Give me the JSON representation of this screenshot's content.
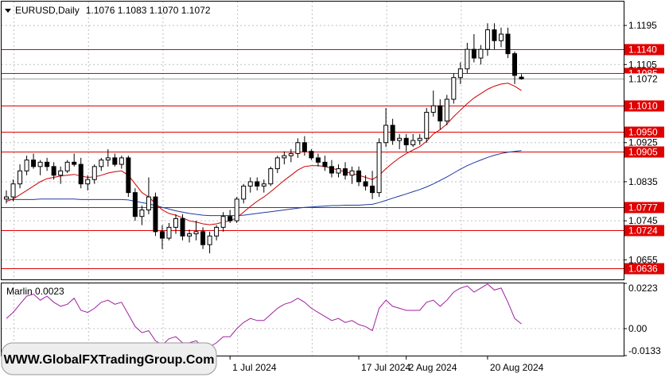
{
  "header": {
    "symbol": "EURUSD",
    "timeframe": "Daily",
    "quote": "1.1076 1.1083 1.1070 1.1072"
  },
  "watermark": "WWW.GlobalFXTradingGroup.Com",
  "colors": {
    "bg": "#ffffff",
    "grid": "#c0c0c0",
    "level": "#e00000",
    "ma_fast": "#cc0000",
    "ma_slow": "#1f3a9e",
    "osc": "#a020a0",
    "candle": "#000000",
    "current": "#000000"
  },
  "chart_data": [
    {
      "type": "candlestick",
      "title": "EURUSD,Daily",
      "ylim": [
        1.061,
        1.125
      ],
      "y_ticks": [
        "1.1195",
        "1.1105",
        "1.0925",
        "1.0835",
        "1.0745",
        "1.0655"
      ],
      "x_labels": [
        "1 Jul 2024",
        "17 Jul 2024",
        "2 Aug 2024",
        "20 Aug 2024"
      ],
      "grid": true,
      "current_price": 1.1072,
      "current_price_label": "1.1072",
      "levels": [
        {
          "value": 1.114,
          "label": "1.1140"
        },
        {
          "value": 1.1085,
          "label": "1.1085"
        },
        {
          "value": 1.101,
          "label": "1.1010"
        },
        {
          "value": 1.095,
          "label": "1.0950"
        },
        {
          "value": 1.0905,
          "label": "1.0905"
        },
        {
          "value": 1.0777,
          "label": "1.0777"
        },
        {
          "value": 1.0724,
          "label": "1.0724"
        },
        {
          "value": 1.0636,
          "label": "1.0636"
        }
      ],
      "candles": [
        [
          1.0795,
          1.0815,
          1.0785,
          1.08
        ],
        [
          1.08,
          1.084,
          1.079,
          1.083
        ],
        [
          1.083,
          1.0875,
          1.082,
          1.086
        ],
        [
          1.086,
          1.0895,
          1.085,
          1.0885
        ],
        [
          1.0885,
          1.09,
          1.0865,
          1.087
        ],
        [
          1.087,
          1.0885,
          1.085,
          1.088
        ],
        [
          1.088,
          1.089,
          1.086,
          1.087
        ],
        [
          1.087,
          1.088,
          1.084,
          1.085
        ],
        [
          1.085,
          1.087,
          1.083,
          1.086
        ],
        [
          1.086,
          1.0885,
          1.0855,
          1.088
        ],
        [
          1.088,
          1.09,
          1.087,
          1.0875
        ],
        [
          1.0875,
          1.089,
          1.082,
          1.083
        ],
        [
          1.083,
          1.085,
          1.0815,
          1.084
        ],
        [
          1.084,
          1.0875,
          1.083,
          1.087
        ],
        [
          1.087,
          1.089,
          1.086,
          1.0885
        ],
        [
          1.0885,
          1.091,
          1.087,
          1.089
        ],
        [
          1.089,
          1.09,
          1.087,
          1.0875
        ],
        [
          1.0875,
          1.0895,
          1.0865,
          1.089
        ],
        [
          1.089,
          1.0895,
          1.08,
          1.081
        ],
        [
          1.081,
          1.082,
          1.0745,
          1.0755
        ],
        [
          1.0755,
          1.078,
          1.0735,
          1.077
        ],
        [
          1.077,
          1.0845,
          1.076,
          1.08
        ],
        [
          1.08,
          1.081,
          1.071,
          1.072
        ],
        [
          1.072,
          1.0735,
          1.068,
          1.0705
        ],
        [
          1.0705,
          1.074,
          1.07,
          1.073
        ],
        [
          1.073,
          1.076,
          1.0715,
          1.075
        ],
        [
          1.075,
          1.076,
          1.07,
          1.071
        ],
        [
          1.071,
          1.0725,
          1.0695,
          1.0715
        ],
        [
          1.0715,
          1.0745,
          1.07,
          1.072
        ],
        [
          1.072,
          1.073,
          1.068,
          1.069
        ],
        [
          1.069,
          1.072,
          1.067,
          1.071
        ],
        [
          1.071,
          1.0735,
          1.07,
          1.073
        ],
        [
          1.073,
          1.0765,
          1.072,
          1.0755
        ],
        [
          1.0755,
          1.077,
          1.074,
          1.0745
        ],
        [
          1.0745,
          1.08,
          1.074,
          1.0795
        ],
        [
          1.0795,
          1.083,
          1.0785,
          1.0825
        ],
        [
          1.0825,
          1.0845,
          1.081,
          1.0835
        ],
        [
          1.0835,
          1.0845,
          1.0815,
          1.0825
        ],
        [
          1.0825,
          1.084,
          1.081,
          1.083
        ],
        [
          1.083,
          1.087,
          1.0825,
          1.0865
        ],
        [
          1.0865,
          1.0895,
          1.0855,
          1.089
        ],
        [
          1.089,
          1.0905,
          1.0875,
          1.0895
        ],
        [
          1.0895,
          1.091,
          1.088,
          1.09
        ],
        [
          1.09,
          1.0935,
          1.089,
          1.0925
        ],
        [
          1.0925,
          1.094,
          1.0895,
          1.0905
        ],
        [
          1.0905,
          1.091,
          1.0885,
          1.089
        ],
        [
          1.089,
          1.09,
          1.087,
          1.088
        ],
        [
          1.088,
          1.0895,
          1.086,
          1.087
        ],
        [
          1.087,
          1.0885,
          1.0845,
          1.0855
        ],
        [
          1.0855,
          1.0875,
          1.0845,
          1.0865
        ],
        [
          1.0865,
          1.088,
          1.084,
          1.085
        ],
        [
          1.085,
          1.087,
          1.083,
          1.086
        ],
        [
          1.086,
          1.087,
          1.0825,
          1.0835
        ],
        [
          1.0835,
          1.085,
          1.0815,
          1.0825
        ],
        [
          1.0825,
          1.086,
          1.0795,
          1.081
        ],
        [
          1.081,
          1.0935,
          1.08,
          1.0925
        ],
        [
          1.0925,
          1.1005,
          1.0915,
          1.0965
        ],
        [
          1.0965,
          1.098,
          1.092,
          1.093
        ],
        [
          1.093,
          1.0945,
          1.091,
          1.0935
        ],
        [
          1.0935,
          1.0945,
          1.0905,
          1.092
        ],
        [
          1.092,
          1.0945,
          1.0915,
          1.093
        ],
        [
          1.093,
          1.0945,
          1.092,
          1.0935
        ],
        [
          1.0935,
          1.1005,
          1.0925,
          1.0995
        ],
        [
          1.0995,
          1.1045,
          1.0985,
          1.101
        ],
        [
          1.101,
          1.1025,
          1.0955,
          1.0975
        ],
        [
          1.0975,
          1.1035,
          1.0965,
          1.1025
        ],
        [
          1.1025,
          1.1085,
          1.1015,
          1.1075
        ],
        [
          1.1075,
          1.111,
          1.106,
          1.1095
        ],
        [
          1.1095,
          1.1155,
          1.1085,
          1.114
        ],
        [
          1.114,
          1.1175,
          1.111,
          1.112
        ],
        [
          1.112,
          1.115,
          1.1105,
          1.114
        ],
        [
          1.114,
          1.12,
          1.1125,
          1.1185
        ],
        [
          1.1185,
          1.12,
          1.114,
          1.116
        ],
        [
          1.116,
          1.119,
          1.1145,
          1.1175
        ],
        [
          1.1175,
          1.119,
          1.112,
          1.113
        ],
        [
          1.113,
          1.1135,
          1.106,
          1.108
        ],
        [
          1.1076,
          1.1083,
          1.107,
          1.1072
        ]
      ],
      "ma_fast": [
        1.079,
        1.0795,
        1.0805,
        1.0815,
        1.0825,
        1.0835,
        1.0842,
        1.0845,
        1.0848,
        1.085,
        1.0852,
        1.0848,
        1.0845,
        1.0846,
        1.085,
        1.0855,
        1.0858,
        1.086,
        1.085,
        1.083,
        1.081,
        1.08,
        1.0785,
        1.077,
        1.0762,
        1.0758,
        1.0752,
        1.0745,
        1.0742,
        1.0738,
        1.0736,
        1.0738,
        1.0742,
        1.0745,
        1.0752,
        1.0765,
        1.0778,
        1.079,
        1.08,
        1.0812,
        1.0825,
        1.0838,
        1.085,
        1.0862,
        1.087,
        1.0872,
        1.0872,
        1.087,
        1.0866,
        1.0862,
        1.0858,
        1.0854,
        1.085,
        1.0845,
        1.084,
        1.085,
        1.0865,
        1.0878,
        1.089,
        1.09,
        1.0908,
        1.0916,
        1.0928,
        1.0945,
        1.0955,
        1.0968,
        1.0985,
        1.1,
        1.1015,
        1.1028,
        1.1038,
        1.1048,
        1.1055,
        1.106,
        1.1062,
        1.1055,
        1.1045
      ],
      "ma_slow": [
        1.0795,
        1.0794,
        1.0794,
        1.0794,
        1.0794,
        1.0795,
        1.0795,
        1.0795,
        1.0795,
        1.0795,
        1.0795,
        1.0794,
        1.0794,
        1.0794,
        1.0794,
        1.0794,
        1.0794,
        1.0794,
        1.0793,
        1.079,
        1.0787,
        1.0784,
        1.078,
        1.0776,
        1.0772,
        1.0768,
        1.0765,
        1.0762,
        1.076,
        1.0758,
        1.0757,
        1.0757,
        1.0757,
        1.0757,
        1.0757,
        1.0758,
        1.076,
        1.0762,
        1.0764,
        1.0766,
        1.0768,
        1.077,
        1.0772,
        1.0774,
        1.0776,
        1.0777,
        1.0778,
        1.0779,
        1.078,
        1.078,
        1.0781,
        1.0781,
        1.0781,
        1.0782,
        1.0783,
        1.0787,
        1.0792,
        1.0797,
        1.0802,
        1.0807,
        1.0812,
        1.0817,
        1.0823,
        1.083,
        1.0838,
        1.0846,
        1.0855,
        1.0864,
        1.0872,
        1.0879,
        1.0885,
        1.0891,
        1.0896,
        1.09,
        1.0903,
        1.0905,
        1.0907
      ]
    },
    {
      "type": "line",
      "title": "Marlin 0.0023",
      "ylim": [
        -0.0133,
        0.0223
      ],
      "y_ticks": [
        "0.0223",
        "0.00",
        "-0.0133"
      ],
      "series": [
        {
          "values": [
            0.005,
            0.008,
            0.012,
            0.016,
            0.017,
            0.014,
            0.016,
            0.013,
            0.011,
            0.012,
            0.015,
            0.009,
            0.008,
            0.01,
            0.013,
            0.014,
            0.012,
            0.013,
            0.007,
            0.001,
            -0.002,
            -0.001,
            -0.006,
            -0.008,
            -0.005,
            -0.004,
            -0.007,
            -0.007,
            -0.006,
            -0.009,
            -0.009,
            -0.007,
            -0.004,
            -0.004,
            0.0,
            0.003,
            0.005,
            0.004,
            0.004,
            0.007,
            0.01,
            0.012,
            0.013,
            0.015,
            0.013,
            0.01,
            0.008,
            0.006,
            0.004,
            0.005,
            0.003,
            0.004,
            0.002,
            0.001,
            -0.001,
            0.01,
            0.014,
            0.011,
            0.01,
            0.009,
            0.009,
            0.009,
            0.013,
            0.014,
            0.011,
            0.014,
            0.018,
            0.02,
            0.021,
            0.018,
            0.02,
            0.022,
            0.019,
            0.02,
            0.013,
            0.005,
            0.0023
          ]
        }
      ]
    }
  ]
}
